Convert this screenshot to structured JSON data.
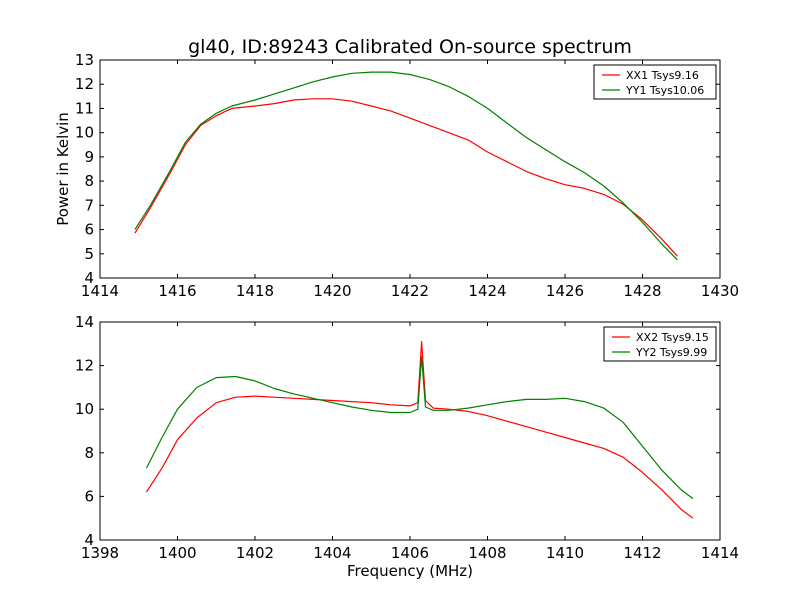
{
  "title": "gl40, ID:89243 Calibrated On-source spectrum",
  "colors": {
    "xx": "#ff0000",
    "yy": "#008000",
    "frame": "#000000",
    "background": "#ffffff"
  },
  "chart_data": [
    {
      "type": "line",
      "ylabel": "Power in Kelvin",
      "xlabel": "",
      "xlim": [
        1414,
        1430
      ],
      "ylim": [
        4,
        13
      ],
      "xticks": [
        1414,
        1416,
        1418,
        1420,
        1422,
        1424,
        1426,
        1428,
        1430
      ],
      "yticks": [
        4,
        5,
        6,
        7,
        8,
        9,
        10,
        11,
        12,
        13
      ],
      "grid": false,
      "legend_position": "top-right",
      "series": [
        {
          "name": "XX1 Tsys9.16",
          "color": "#ff0000",
          "x": [
            1414.9,
            1415.3,
            1415.8,
            1416.2,
            1416.6,
            1417.0,
            1417.4,
            1418.0,
            1418.5,
            1419.0,
            1419.5,
            1420.0,
            1420.5,
            1421.0,
            1421.5,
            1422.0,
            1422.5,
            1423.0,
            1423.5,
            1424.0,
            1424.5,
            1425.0,
            1425.5,
            1426.0,
            1426.5,
            1427.0,
            1427.5,
            1428.0,
            1428.5,
            1428.9
          ],
          "y": [
            5.85,
            6.9,
            8.3,
            9.5,
            10.3,
            10.7,
            11.0,
            11.1,
            11.2,
            11.35,
            11.4,
            11.4,
            11.3,
            11.1,
            10.9,
            10.6,
            10.3,
            10.0,
            9.7,
            9.2,
            8.8,
            8.4,
            8.1,
            7.85,
            7.7,
            7.45,
            7.05,
            6.4,
            5.6,
            4.9
          ]
        },
        {
          "name": "YY1 Tsys10.06",
          "color": "#008000",
          "x": [
            1414.9,
            1415.3,
            1415.8,
            1416.2,
            1416.6,
            1417.0,
            1417.4,
            1418.0,
            1418.5,
            1419.0,
            1419.5,
            1420.0,
            1420.5,
            1421.0,
            1421.5,
            1422.0,
            1422.5,
            1423.0,
            1423.5,
            1424.0,
            1424.5,
            1425.0,
            1425.5,
            1426.0,
            1426.5,
            1427.0,
            1427.5,
            1428.0,
            1428.5,
            1428.9
          ],
          "y": [
            6.0,
            7.0,
            8.4,
            9.6,
            10.35,
            10.8,
            11.1,
            11.35,
            11.6,
            11.85,
            12.1,
            12.3,
            12.45,
            12.5,
            12.5,
            12.4,
            12.2,
            11.9,
            11.5,
            11.0,
            10.4,
            9.8,
            9.3,
            8.8,
            8.35,
            7.8,
            7.1,
            6.3,
            5.4,
            4.75
          ]
        }
      ]
    },
    {
      "type": "line",
      "ylabel": "",
      "xlabel": "Frequency (MHz)",
      "xlim": [
        1398,
        1414
      ],
      "ylim": [
        4,
        14
      ],
      "xticks": [
        1398,
        1400,
        1402,
        1404,
        1406,
        1408,
        1410,
        1412,
        1414
      ],
      "yticks": [
        4,
        6,
        8,
        10,
        12,
        14
      ],
      "grid": false,
      "legend_position": "top-right",
      "series": [
        {
          "name": "XX2 Tsys9.15",
          "color": "#ff0000",
          "x": [
            1399.2,
            1399.6,
            1400.0,
            1400.5,
            1401.0,
            1401.5,
            1402.0,
            1402.5,
            1403.0,
            1403.5,
            1404.0,
            1404.5,
            1405.0,
            1405.5,
            1406.0,
            1406.2,
            1406.3,
            1406.4,
            1406.6,
            1407.0,
            1407.5,
            1408.0,
            1408.5,
            1409.0,
            1409.5,
            1410.0,
            1410.5,
            1411.0,
            1411.5,
            1412.0,
            1412.5,
            1413.0,
            1413.3
          ],
          "y": [
            6.2,
            7.3,
            8.6,
            9.6,
            10.3,
            10.55,
            10.6,
            10.55,
            10.5,
            10.45,
            10.4,
            10.35,
            10.3,
            10.2,
            10.15,
            10.3,
            13.1,
            10.4,
            10.05,
            10.0,
            9.9,
            9.7,
            9.45,
            9.2,
            8.95,
            8.7,
            8.45,
            8.2,
            7.8,
            7.1,
            6.3,
            5.4,
            5.0
          ]
        },
        {
          "name": "YY2 Tsys9.99",
          "color": "#008000",
          "x": [
            1399.2,
            1399.6,
            1400.0,
            1400.5,
            1401.0,
            1401.5,
            1402.0,
            1402.5,
            1403.0,
            1403.5,
            1404.0,
            1404.5,
            1405.0,
            1405.5,
            1406.0,
            1406.2,
            1406.3,
            1406.4,
            1406.6,
            1407.0,
            1407.5,
            1408.0,
            1408.5,
            1409.0,
            1409.5,
            1410.0,
            1410.5,
            1411.0,
            1411.5,
            1412.0,
            1412.5,
            1413.0,
            1413.3
          ],
          "y": [
            7.3,
            8.7,
            10.0,
            11.0,
            11.45,
            11.5,
            11.3,
            10.95,
            10.7,
            10.5,
            10.3,
            10.1,
            9.95,
            9.85,
            9.85,
            10.0,
            12.4,
            10.1,
            9.95,
            9.95,
            10.05,
            10.2,
            10.35,
            10.45,
            10.45,
            10.5,
            10.35,
            10.05,
            9.4,
            8.3,
            7.2,
            6.3,
            5.9
          ]
        }
      ]
    }
  ]
}
